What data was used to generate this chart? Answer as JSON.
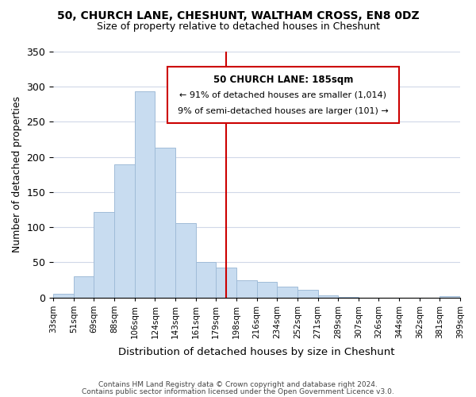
{
  "title": "50, CHURCH LANE, CHESHUNT, WALTHAM CROSS, EN8 0DZ",
  "subtitle": "Size of property relative to detached houses in Cheshunt",
  "xlabel": "Distribution of detached houses by size in Cheshunt",
  "ylabel": "Number of detached properties",
  "bin_labels": [
    "33sqm",
    "51sqm",
    "69sqm",
    "88sqm",
    "106sqm",
    "124sqm",
    "143sqm",
    "161sqm",
    "179sqm",
    "198sqm",
    "216sqm",
    "234sqm",
    "252sqm",
    "271sqm",
    "289sqm",
    "307sqm",
    "326sqm",
    "344sqm",
    "362sqm",
    "381sqm",
    "399sqm"
  ],
  "bar_heights": [
    5,
    30,
    122,
    190,
    293,
    213,
    106,
    51,
    43,
    24,
    22,
    16,
    11,
    3,
    1,
    0,
    0,
    0,
    0,
    2
  ],
  "bar_color": "#c8dcf0",
  "bar_edge_color": "#a0bcd8",
  "vline_x": 8.5,
  "vline_color": "#cc0000",
  "annotation_title": "50 CHURCH LANE: 185sqm",
  "annotation_line1": "← 91% of detached houses are smaller (1,014)",
  "annotation_line2": "9% of semi-detached houses are larger (101) →",
  "annotation_box_color": "#ffffff",
  "annotation_box_edge": "#cc0000",
  "ylim": [
    0,
    350
  ],
  "yticks": [
    0,
    50,
    100,
    150,
    200,
    250,
    300,
    350
  ],
  "footer_line1": "Contains HM Land Registry data © Crown copyright and database right 2024.",
  "footer_line2": "Contains public sector information licensed under the Open Government Licence v3.0.",
  "background_color": "#ffffff",
  "grid_color": "#d0d8e8"
}
